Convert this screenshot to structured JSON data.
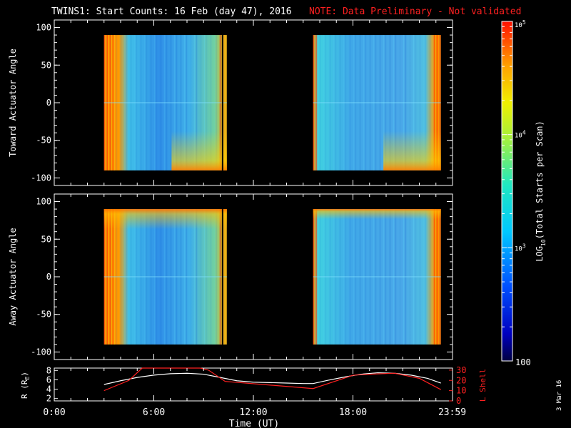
{
  "title": {
    "main": "TWINS1: Start Counts: 16 Feb (day  47), 2016",
    "note": "NOTE: Data Preliminary - Not validated"
  },
  "date_stamp": "3 Mar 16",
  "colors": {
    "note": "#ff2020",
    "lshell": "#ff2020",
    "rline": "#ffffff"
  },
  "chart_data": [
    {
      "type": "heatmap",
      "name": "toward",
      "ylabel": "Toward Actuator Angle",
      "ylim": [
        -110,
        110
      ],
      "yticks": [
        "100",
        "50",
        "0",
        "-50",
        "-100"
      ],
      "ytick_values": [
        100,
        50,
        0,
        -50,
        -100
      ],
      "xlim": [
        0,
        24
      ],
      "data_blocks": [
        {
          "x_start": 3.0,
          "x_end": 10.4,
          "y_range": [
            -90,
            90
          ]
        },
        {
          "x_start": 15.6,
          "x_end": 23.3,
          "y_range": [
            -90,
            90
          ]
        }
      ]
    },
    {
      "type": "heatmap",
      "name": "away",
      "ylabel": "Away Actuator Angle",
      "ylim": [
        -110,
        110
      ],
      "yticks": [
        "100",
        "50",
        "0",
        "-50",
        "-100"
      ],
      "ytick_values": [
        100,
        50,
        0,
        -50,
        -100
      ],
      "xlim": [
        0,
        24
      ],
      "data_blocks": [
        {
          "x_start": 3.0,
          "x_end": 10.4,
          "y_range": [
            -90,
            90
          ]
        },
        {
          "x_start": 15.6,
          "x_end": 23.3,
          "y_range": [
            -90,
            90
          ]
        }
      ]
    },
    {
      "type": "line",
      "name": "orbit",
      "xlabel": "Time (UT)",
      "xticks": [
        "0:00",
        "6:00",
        "12:00",
        "18:00",
        "23:59"
      ],
      "xtick_values": [
        0,
        6,
        12,
        18,
        23.98
      ],
      "xlim": [
        0,
        24
      ],
      "left_axis": {
        "label": "R (RE)",
        "ylim": [
          1.5,
          8.5
        ],
        "yticks": [
          "8",
          "6",
          "4",
          "2"
        ],
        "ytick_values": [
          8,
          6,
          4,
          2
        ]
      },
      "right_axis": {
        "label": "L Shell",
        "ylim": [
          0,
          32
        ],
        "yticks": [
          "30",
          "20",
          "10",
          "0"
        ],
        "ytick_values": [
          30,
          20,
          10,
          0
        ]
      },
      "series": [
        {
          "name": "R",
          "axis": "left",
          "x": [
            3.0,
            4.0,
            5.0,
            6.0,
            7.0,
            8.0,
            9.0,
            10.0,
            11.0,
            12.0,
            13.0,
            14.0,
            15.0,
            15.6,
            16.5,
            17.5,
            18.5,
            19.5,
            20.5,
            21.5,
            22.5,
            23.3
          ],
          "y": [
            5.0,
            5.8,
            6.5,
            7.0,
            7.3,
            7.4,
            7.2,
            6.5,
            5.8,
            5.5,
            5.4,
            5.3,
            5.2,
            5.2,
            5.9,
            6.6,
            7.2,
            7.5,
            7.4,
            7.0,
            6.3,
            5.3
          ]
        },
        {
          "name": "L Shell",
          "axis": "right",
          "x": [
            3.0,
            4.5,
            5.3,
            8.8,
            9.3,
            10.3,
            15.6,
            18.0,
            19.0,
            20.5,
            22.0,
            23.3
          ],
          "y": [
            10,
            20,
            32,
            32,
            30,
            19,
            12,
            25,
            26,
            27,
            22,
            11
          ]
        }
      ]
    },
    {
      "type": "colorbar",
      "label_prefix": "LOG",
      "label_sub": "10",
      "label_suffix": "(Total Starts per Scan)",
      "range": [
        100,
        100000
      ],
      "ticks": [
        {
          "base": "10",
          "exp": "5",
          "value": 100000
        },
        {
          "base": "10",
          "exp": "4",
          "value": 10000
        },
        {
          "base": "10",
          "exp": "3",
          "value": 1000
        }
      ],
      "bottom_label": "100"
    }
  ]
}
